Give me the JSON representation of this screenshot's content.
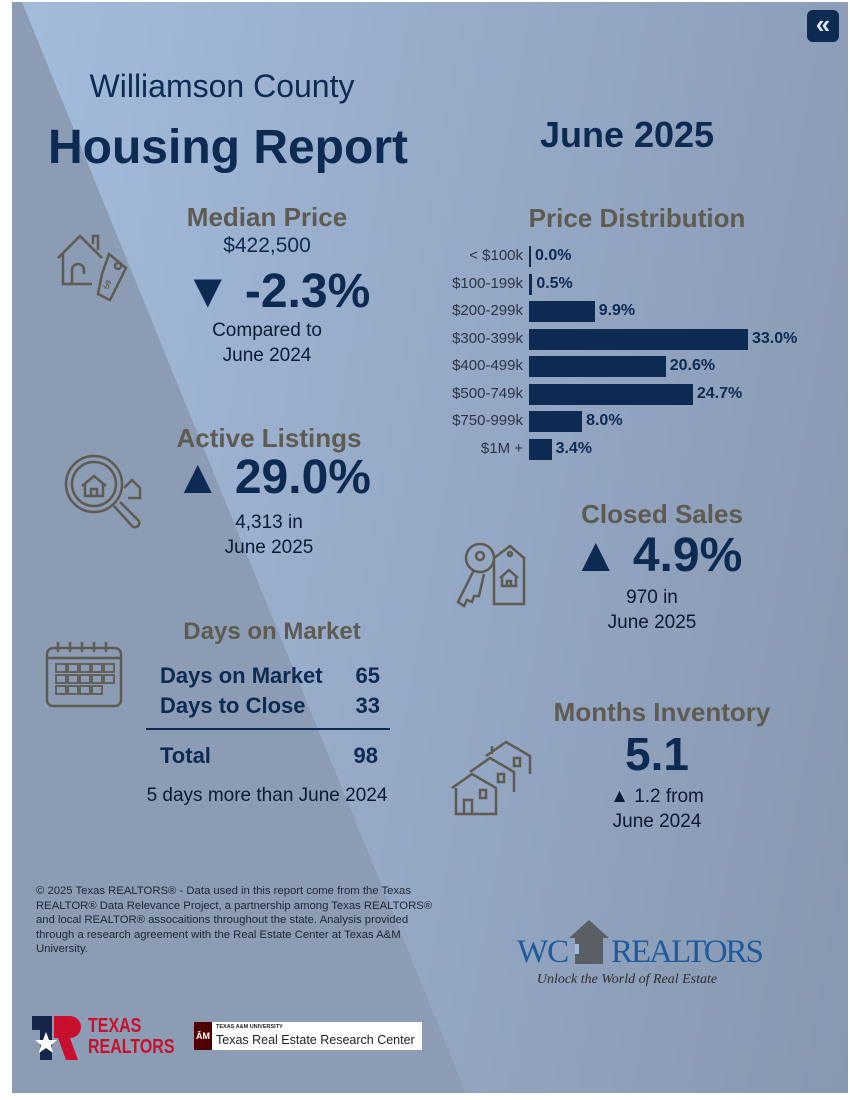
{
  "header": {
    "county": "Williamson County",
    "title": "Housing Report",
    "period": "June 2025",
    "collapse_icon": "double-chevron-left-icon"
  },
  "median_price": {
    "heading": "Median Price",
    "value": "$422,500",
    "arrow": "▼",
    "change": "-2.3%",
    "compare_line1": "Compared to",
    "compare_line2": "June 2024"
  },
  "active_listings": {
    "heading": "Active Listings",
    "arrow": "▲",
    "change": "29.0%",
    "line1": "4,313 in",
    "line2": "June 2025"
  },
  "days_on_market": {
    "heading": "Days on Market",
    "rows": [
      {
        "label": "Days on Market",
        "value": "65"
      },
      {
        "label": "Days to Close",
        "value": "33"
      }
    ],
    "total_label": "Total",
    "total_value": "98",
    "note": "5 days more than June 2024"
  },
  "chart_data": {
    "type": "bar",
    "orientation": "horizontal",
    "title": "Price Distribution",
    "categories": [
      "< $100k",
      "$100-199k",
      "$200-299k",
      "$300-399k",
      "$400-499k",
      "$500-749k",
      "$750-999k",
      "$1M +"
    ],
    "values": [
      0.0,
      0.5,
      9.9,
      33.0,
      20.6,
      24.7,
      8.0,
      3.4
    ],
    "labels": [
      "0.0%",
      "0.5%",
      "9.9%",
      "33.0%",
      "20.6%",
      "24.7%",
      "8.0%",
      "3.4%"
    ],
    "color": "#0d2a52"
  },
  "closed_sales": {
    "heading": "Closed Sales",
    "arrow": "▲",
    "change": "4.9%",
    "line1": "970 in",
    "line2": "June 2025"
  },
  "months_inventory": {
    "heading": "Months Inventory",
    "value": "5.1",
    "line1": "▲ 1.2 from",
    "line2": "June 2024"
  },
  "footer": {
    "disclaimer": "© 2025 Texas REALTORS® - Data used in this report come from the Texas REALTOR® Data Relevance Project, a partnership among Texas REALTORS® and local REALTOR® assocaitions throughout the state. Analysis provided through a research agreement with the Real Estate Center at Texas A&M University.",
    "wc_logo_left": "WC",
    "wc_logo_right": "REALTORS",
    "wc_tagline": "Unlock the World of Real Estate",
    "tr_logo_top": "TEXAS",
    "tr_logo_bottom": "REALTORS",
    "tamu_small": "TEXAS A&M UNIVERSITY",
    "tamu_name": "Texas Real Estate Research Center"
  }
}
